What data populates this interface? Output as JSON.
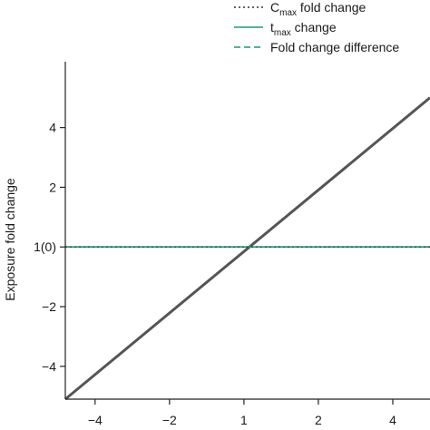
{
  "chart_data": {
    "type": "line",
    "title": "",
    "xlabel": "",
    "ylabel": "Exposure fold change",
    "xlim": [
      -4.8,
      5.0
    ],
    "ylim": [
      -5.1,
      5.6
    ],
    "xticks": [
      -4,
      -2,
      0,
      2,
      4
    ],
    "xtick_labels": [
      "−4",
      "−2",
      "1",
      "2",
      "4"
    ],
    "yticks": [
      -4,
      -2,
      0,
      2,
      4
    ],
    "ytick_labels": [
      "−4",
      "−2",
      "1(0)",
      "2",
      "4"
    ],
    "grid": false,
    "legend_position": "top-right",
    "legend": [
      {
        "prefix": "C",
        "sub": "max",
        "suffix": " fold change",
        "style": "dotted",
        "color": "#333333"
      },
      {
        "prefix": "t",
        "sub": "max",
        "suffix": " change",
        "style": "solid",
        "color": "#1a9a7a"
      },
      {
        "prefix": "Fold change difference",
        "sub": "",
        "suffix": "",
        "style": "dashed",
        "color": "#1a9a7a"
      }
    ],
    "series": [
      {
        "x": [
          -4.8,
          5.0
        ],
        "y": [
          -5.1,
          5.0
        ],
        "color": "#555555",
        "style": "solid",
        "width": 3
      },
      {
        "x": [
          -4.8,
          5.0
        ],
        "y": [
          0,
          0
        ],
        "color": "#1a9a7a",
        "style": "solid",
        "width": 1.6
      },
      {
        "x": [
          -4.8,
          5.0
        ],
        "y": [
          0,
          0
        ],
        "color": "#1a9a7a",
        "style": "dashed",
        "width": 1.6
      },
      {
        "x": [
          -4.8,
          5.0
        ],
        "y": [
          0,
          0
        ],
        "color": "#333333",
        "style": "dotted",
        "width": 1.2
      }
    ]
  }
}
